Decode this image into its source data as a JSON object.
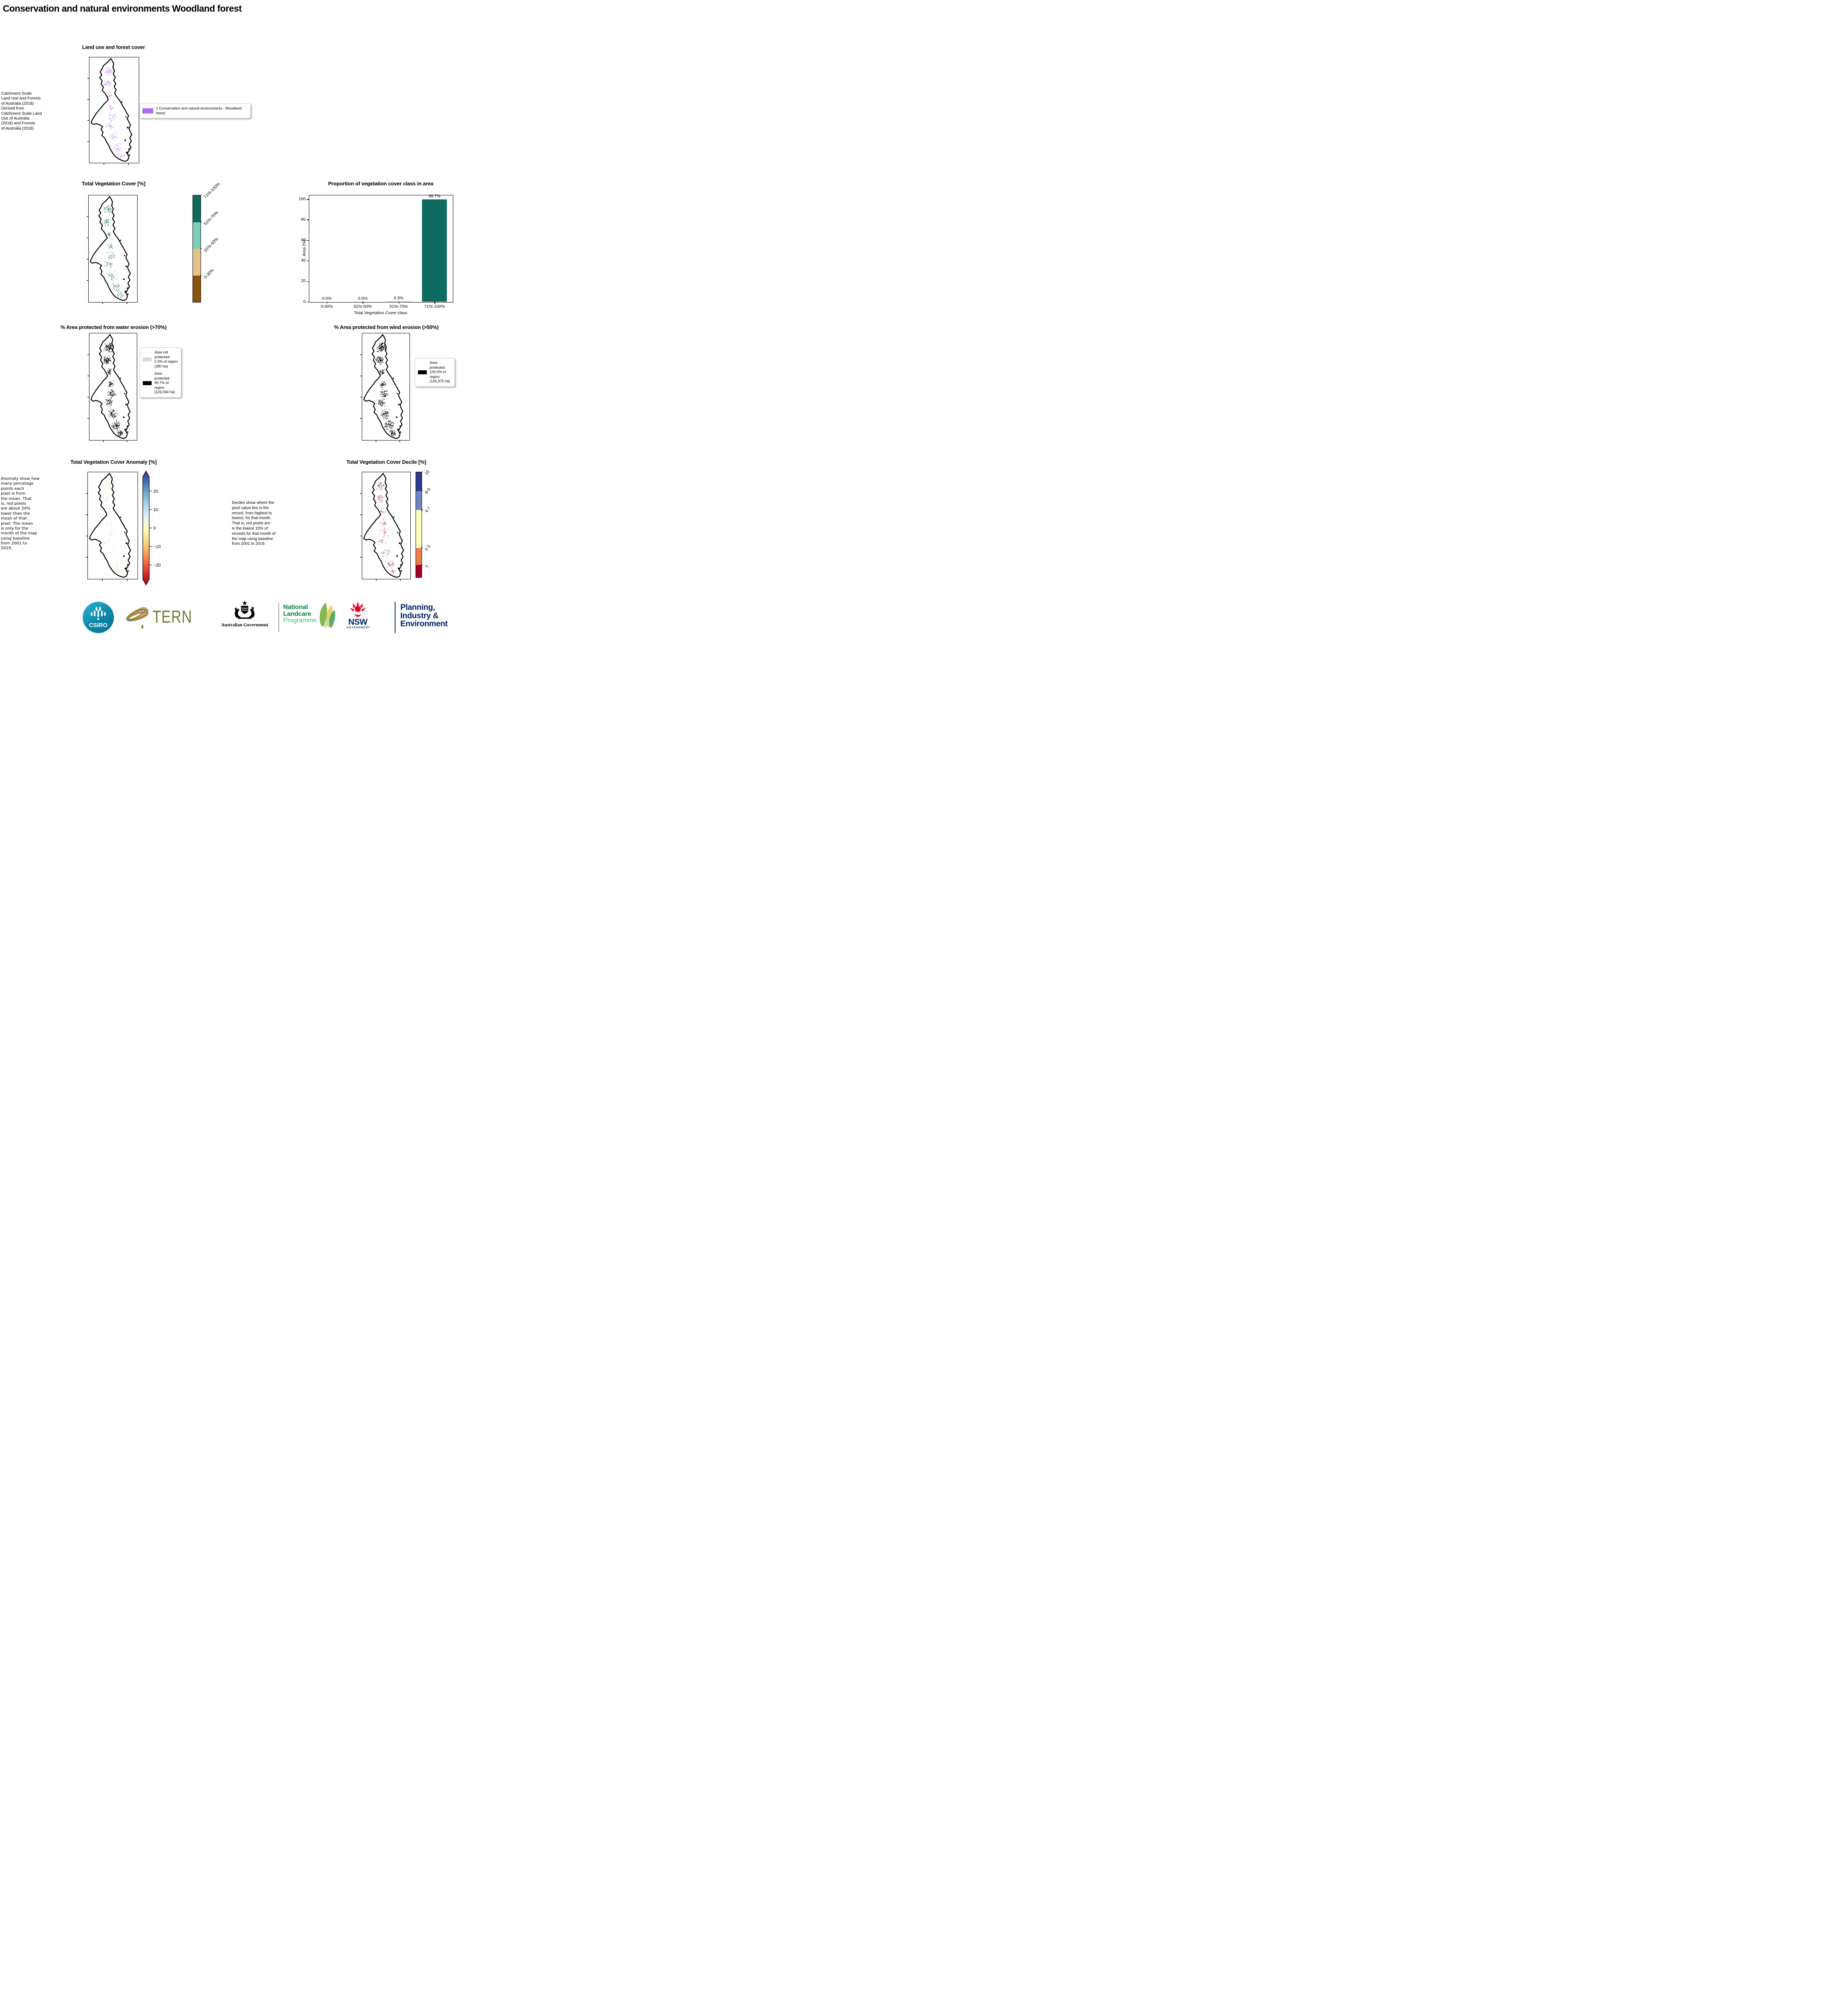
{
  "page_title": "Conservation and natural environments Woodland forest",
  "colors": {
    "landuse_purple": "#b16af2",
    "teal_dark": "#0e6b5f",
    "teal_light": "#7ecdb9",
    "tan": "#e3c287",
    "brown": "#8a540f",
    "legend_gray": "#d8d8d8",
    "protected_black": "#000000",
    "nsw_navy": "#002664",
    "nsw_red": "#e4002b",
    "landcare_green": "#00853f",
    "landcare_light_green": "#4cb572",
    "tern_olive": "#727b31",
    "csiro_teal": "#0e87a8"
  },
  "land_use": {
    "title": "Land use and forest cover",
    "note": "Catchment Scale\nLand Use and Forests\nof Australia (2018)\nDerived from\nCatchment Scale Land\nUse of Australia\n(2018) and Forests\nof Australia (2018)",
    "legend": [
      {
        "color": "#b16af2",
        "label": "1 Conservation and natural environments - Woodland forest"
      }
    ]
  },
  "tvc": {
    "title": "Total Vegetation Cover [%]",
    "classes": [
      {
        "label": "71%-100%",
        "color": "#0e6b5f",
        "size": 25
      },
      {
        "label": "51%-70%",
        "color": "#7ecdb9",
        "size": 25
      },
      {
        "label": "31%-50%",
        "color": "#e3c287",
        "size": 25
      },
      {
        "label": "0-30%",
        "color": "#8a540f",
        "size": 25
      }
    ]
  },
  "chart_data": {
    "type": "bar",
    "title": "Proportion of vegetation cover class in area",
    "categories": [
      "0-30%",
      "31%-50%",
      "51%-70%",
      "71%-100%"
    ],
    "values": [
      0.0,
      0.0,
      0.3,
      99.7
    ],
    "value_labels": [
      "0.0%",
      "0.0%",
      "0.3%",
      "99.7%"
    ],
    "bar_colors": [
      "#8a540f",
      "#e3c287",
      "#7ecdb9",
      "#0e6b5f"
    ],
    "xlabel": "Total Vegetation Cover class",
    "ylabel": "Area (%)",
    "ylim": [
      0,
      104
    ],
    "yticks": [
      0,
      20,
      40,
      60,
      80,
      100
    ],
    "grid": false,
    "legend_position": "none"
  },
  "water": {
    "title": "% Area protected from water erosion (>70%)",
    "legend": [
      {
        "color": "#d8d8d8",
        "label": "Area not protected 0.3% of region (380 ha)"
      },
      {
        "color": "#000000",
        "label": "Area protected 99.7% of region (126,594 ha)"
      }
    ]
  },
  "wind": {
    "title": "% Area protected from wind erosion (>50%)",
    "legend": [
      {
        "color": "#000000",
        "label": "Area protected 100.0% of region (126,975 ha)"
      }
    ]
  },
  "anomaly": {
    "title": "Total Vegetation Cover Anomaly [%]",
    "note": "Anomaly show how\nmany percetage\npoints each\npixel is from\nthe mean. That\nis, red pixels\nare about 20%\nlower than the\nmean of that\npixel. The mean\nis only for the\nmonth of the map\nusing baseline\nfrom 2001 to\n2019.",
    "ticks": [
      "20",
      "10",
      "0",
      "−10",
      "−20"
    ]
  },
  "decile": {
    "title": "Total Vegetation Cover Decile [%]",
    "note": "Deciles show where the\npixel value lies in the\nrecord, from highest to\nlowest, for that month.\nThat is, red pixels are\nin the lowest 10% of\nrecords for that month of\nthe map using baseline\nfrom 2001 to 2019.",
    "classes": [
      {
        "label": "10",
        "color": "#2d3a8d",
        "size": 18
      },
      {
        "label": "8-9",
        "color": "#6f86c3",
        "size": 18
      },
      {
        "label": "4-7",
        "color": "#fefebd",
        "size": 36
      },
      {
        "label": "2-3",
        "color": "#ec7f4c",
        "size": 16
      },
      {
        "label": "1",
        "color": "#a50026",
        "size": 12
      }
    ]
  },
  "logos": {
    "csiro_label": "CSIRO",
    "tern_label": "TERN",
    "aus_gov_label": "Australian Government",
    "landcare_lines": [
      "National",
      "Landcare",
      "Programme"
    ],
    "nsw_label": "NSW",
    "nsw_sub": "GOVERNMENT",
    "planning_lines": [
      "Planning,",
      "Industry &",
      "Environment"
    ]
  }
}
